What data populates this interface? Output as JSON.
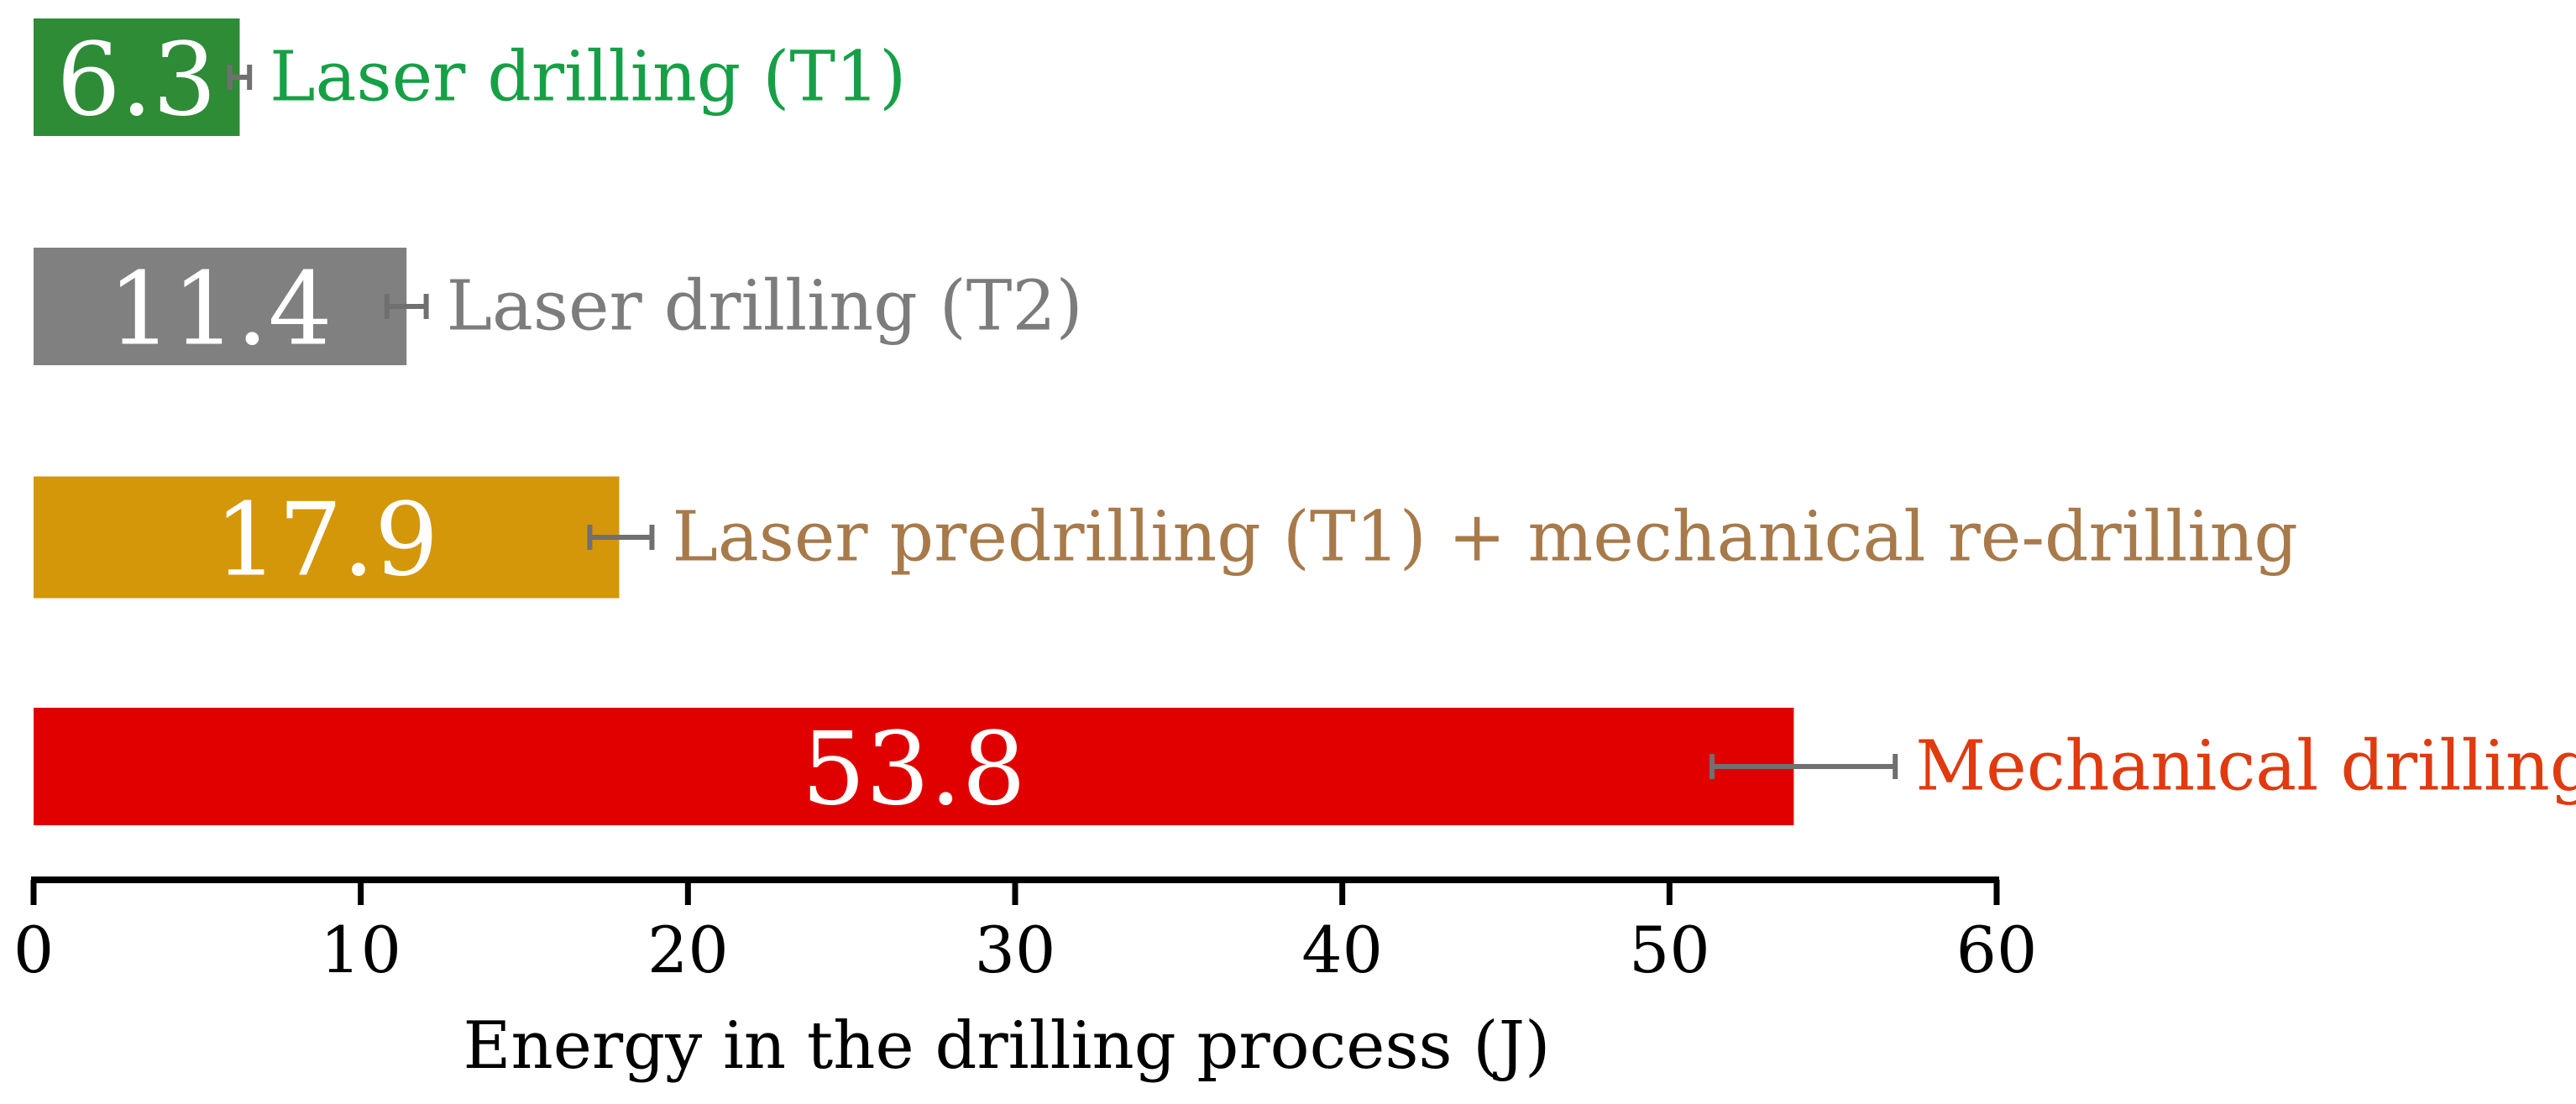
{
  "chart_data": {
    "type": "bar",
    "orientation": "horizontal",
    "categories": [
      "Laser drilling (T1)",
      "Laser drilling (T2)",
      "Laser predrilling (T1) + mechanical re-drilling",
      "Mechanical drilling"
    ],
    "values": [
      6.3,
      11.4,
      17.9,
      53.8
    ],
    "value_labels": [
      "6.3",
      "11.4",
      "17.9",
      "53.8"
    ],
    "error_low": [
      6.0,
      10.8,
      17.0,
      51.3
    ],
    "error_high": [
      6.6,
      12.0,
      18.9,
      56.9
    ],
    "bar_colors": [
      "#2e8b36",
      "#808080",
      "#d4970a",
      "#e00000"
    ],
    "label_colors": [
      "#16a046",
      "#7c7c7c",
      "#a87a4a",
      "#e03a10"
    ],
    "error_bar_color": "#707070",
    "xlabel": "Energy in the drilling process (J)",
    "ylabel": "",
    "xlim": [
      0,
      60
    ],
    "xticks": [
      0,
      10,
      20,
      30,
      40,
      50,
      60
    ],
    "xtick_labels": [
      "0",
      "10",
      "20",
      "30",
      "40",
      "50",
      "60"
    ],
    "grid": false,
    "legend": "none"
  }
}
